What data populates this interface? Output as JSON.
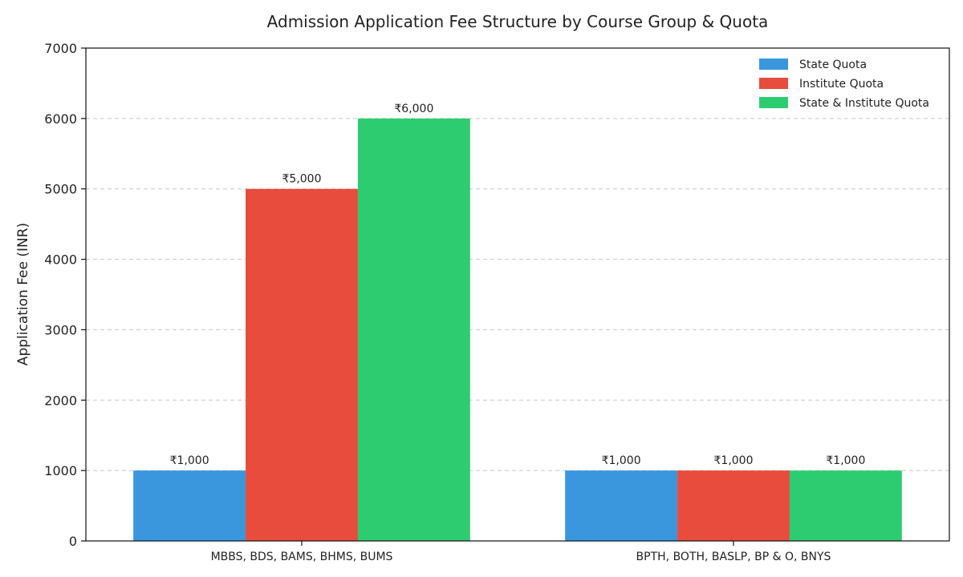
{
  "chart_data": {
    "type": "bar",
    "title": "Admission Application Fee Structure by Course Group & Quota",
    "xlabel": "",
    "ylabel": "Application Fee (INR)",
    "ylim": [
      0,
      7000
    ],
    "yticks": [
      0,
      1000,
      2000,
      3000,
      4000,
      5000,
      6000,
      7000
    ],
    "grid": true,
    "legend_position": "top-right",
    "categories": [
      "MBBS, BDS, BAMS, BHMS, BUMS",
      "BPTH, BOTH, BASLP, BP & O, BNYS"
    ],
    "series": [
      {
        "name": "State Quota",
        "color": "#3a96dd",
        "values": [
          1000,
          1000
        ],
        "labels": [
          "₹1,000",
          "₹1,000"
        ]
      },
      {
        "name": "Institute Quota",
        "color": "#e74c3c",
        "values": [
          5000,
          1000
        ],
        "labels": [
          "₹5,000",
          "₹1,000"
        ]
      },
      {
        "name": "State & Institute Quota",
        "color": "#2ecc71",
        "values": [
          6000,
          1000
        ],
        "labels": [
          "₹6,000",
          "₹1,000"
        ]
      }
    ]
  }
}
